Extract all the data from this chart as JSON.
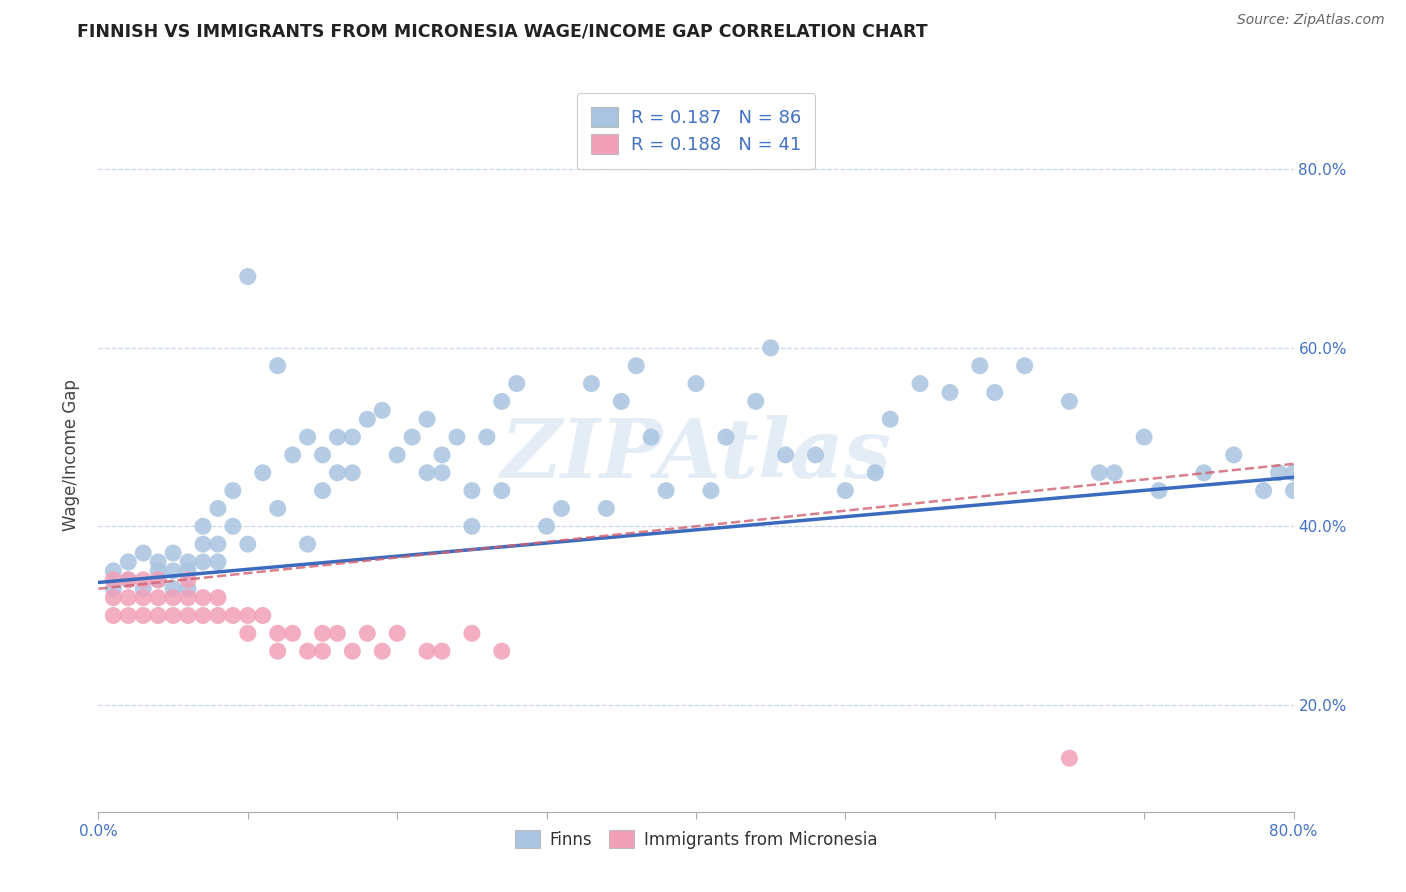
{
  "title": "FINNISH VS IMMIGRANTS FROM MICRONESIA WAGE/INCOME GAP CORRELATION CHART",
  "source": "Source: ZipAtlas.com",
  "ylabel": "Wage/Income Gap",
  "xlim": [
    0.0,
    0.8
  ],
  "ylim": [
    0.08,
    0.88
  ],
  "y_ticks_right": [
    0.2,
    0.4,
    0.6,
    0.8
  ],
  "y_tick_labels_right": [
    "20.0%",
    "40.0%",
    "60.0%",
    "80.0%"
  ],
  "legend_label1": "Finns",
  "legend_label2": "Immigrants from Micronesia",
  "blue_color": "#a8c4e0",
  "blue_line_color": "#3a6bbf",
  "pink_color": "#f2a0b8",
  "pink_line_color": "#d06070",
  "watermark": "ZIPAtlas",
  "background_color": "#ffffff",
  "grid_color": "#c8d8ea",
  "blue_scatter_x": [
    0.01,
    0.01,
    0.02,
    0.02,
    0.03,
    0.03,
    0.04,
    0.04,
    0.04,
    0.05,
    0.05,
    0.05,
    0.06,
    0.06,
    0.06,
    0.07,
    0.07,
    0.07,
    0.08,
    0.08,
    0.08,
    0.09,
    0.09,
    0.1,
    0.1,
    0.11,
    0.12,
    0.12,
    0.13,
    0.14,
    0.14,
    0.15,
    0.15,
    0.16,
    0.16,
    0.17,
    0.17,
    0.18,
    0.19,
    0.2,
    0.21,
    0.22,
    0.22,
    0.23,
    0.23,
    0.24,
    0.25,
    0.25,
    0.26,
    0.27,
    0.27,
    0.28,
    0.3,
    0.31,
    0.33,
    0.34,
    0.35,
    0.36,
    0.37,
    0.38,
    0.4,
    0.41,
    0.42,
    0.44,
    0.45,
    0.46,
    0.48,
    0.5,
    0.52,
    0.53,
    0.55,
    0.57,
    0.59,
    0.6,
    0.62,
    0.65,
    0.67,
    0.68,
    0.7,
    0.71,
    0.74,
    0.76,
    0.78,
    0.79,
    0.8,
    0.8
  ],
  "blue_scatter_y": [
    0.35,
    0.33,
    0.36,
    0.34,
    0.37,
    0.33,
    0.35,
    0.36,
    0.34,
    0.37,
    0.35,
    0.33,
    0.36,
    0.35,
    0.33,
    0.4,
    0.38,
    0.36,
    0.42,
    0.38,
    0.36,
    0.44,
    0.4,
    0.68,
    0.38,
    0.46,
    0.58,
    0.42,
    0.48,
    0.5,
    0.38,
    0.48,
    0.44,
    0.5,
    0.46,
    0.5,
    0.46,
    0.52,
    0.53,
    0.48,
    0.5,
    0.52,
    0.46,
    0.46,
    0.48,
    0.5,
    0.4,
    0.44,
    0.5,
    0.54,
    0.44,
    0.56,
    0.4,
    0.42,
    0.56,
    0.42,
    0.54,
    0.58,
    0.5,
    0.44,
    0.56,
    0.44,
    0.5,
    0.54,
    0.6,
    0.48,
    0.48,
    0.44,
    0.46,
    0.52,
    0.56,
    0.55,
    0.58,
    0.55,
    0.58,
    0.54,
    0.46,
    0.46,
    0.5,
    0.44,
    0.46,
    0.48,
    0.44,
    0.46,
    0.44,
    0.46
  ],
  "pink_scatter_x": [
    0.01,
    0.01,
    0.01,
    0.02,
    0.02,
    0.02,
    0.03,
    0.03,
    0.03,
    0.04,
    0.04,
    0.04,
    0.05,
    0.05,
    0.06,
    0.06,
    0.06,
    0.07,
    0.07,
    0.08,
    0.08,
    0.09,
    0.1,
    0.1,
    0.11,
    0.12,
    0.12,
    0.13,
    0.14,
    0.15,
    0.15,
    0.16,
    0.17,
    0.18,
    0.19,
    0.2,
    0.22,
    0.23,
    0.25,
    0.27,
    0.65
  ],
  "pink_scatter_y": [
    0.34,
    0.32,
    0.3,
    0.34,
    0.32,
    0.3,
    0.34,
    0.32,
    0.3,
    0.34,
    0.32,
    0.3,
    0.32,
    0.3,
    0.34,
    0.32,
    0.3,
    0.32,
    0.3,
    0.32,
    0.3,
    0.3,
    0.3,
    0.28,
    0.3,
    0.28,
    0.26,
    0.28,
    0.26,
    0.28,
    0.26,
    0.28,
    0.26,
    0.28,
    0.26,
    0.28,
    0.26,
    0.26,
    0.28,
    0.26,
    0.14
  ],
  "blue_trend_x": [
    0.0,
    0.8
  ],
  "blue_trend_y": [
    0.337,
    0.455
  ],
  "pink_trend_x": [
    0.0,
    0.8
  ],
  "pink_trend_y": [
    0.33,
    0.47
  ]
}
